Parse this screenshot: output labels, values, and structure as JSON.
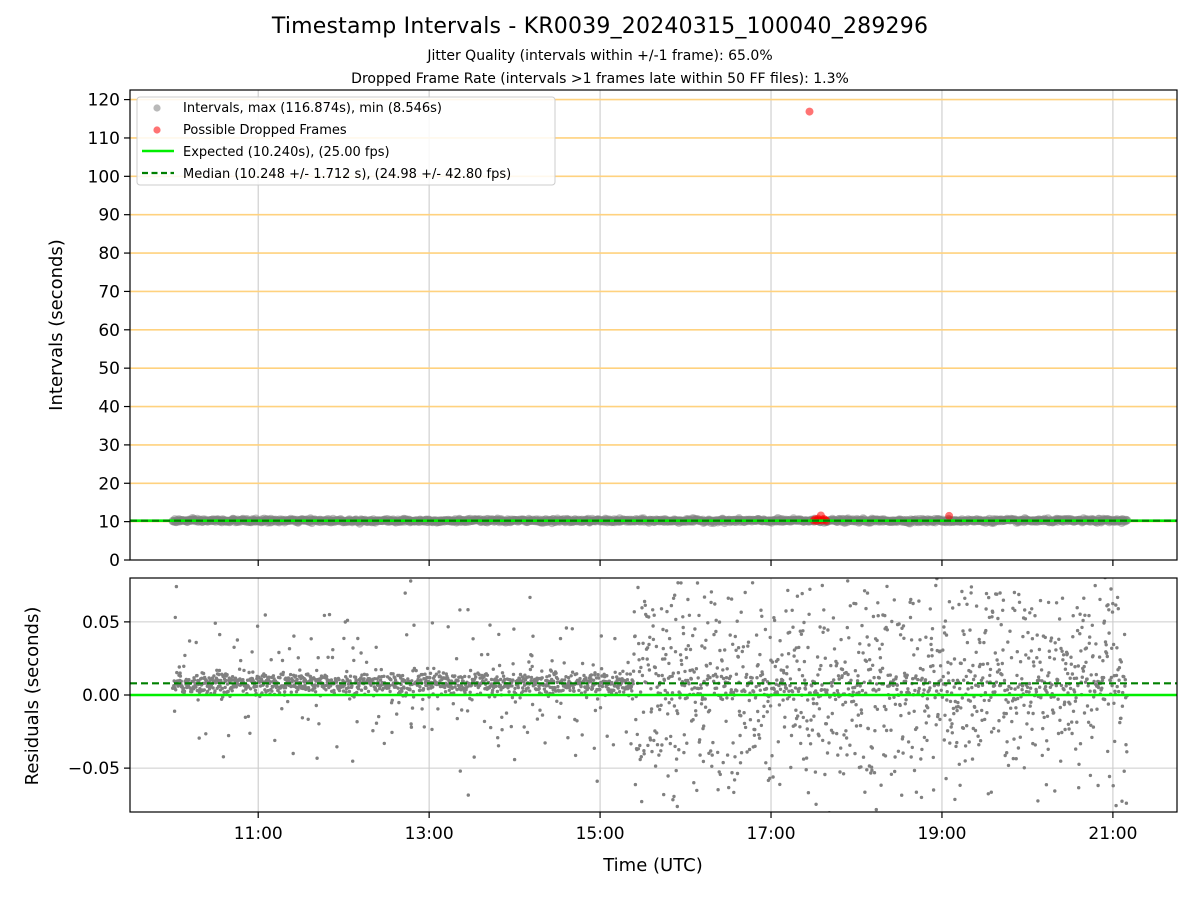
{
  "chart_data": [
    {
      "type": "scatter",
      "title": "Timestamp Intervals - KR0039_20240315_100040_289296",
      "subtitle_1": "Jitter Quality (intervals within +/-1 frame): 65.0%",
      "subtitle_2": "Dropped Frame Rate (intervals >1 frames late within 50 FF files): 1.3%",
      "ylabel": "Intervals (seconds)",
      "ylim": [
        0,
        122.5
      ],
      "xlim": [
        "09:30",
        "21:45"
      ],
      "y_ticks": [
        "0",
        "10",
        "20",
        "30",
        "40",
        "50",
        "60",
        "70",
        "80",
        "90",
        "100",
        "110",
        "120"
      ],
      "horizontal_reference_lines": [
        10,
        20,
        30,
        40,
        50,
        60,
        70,
        80,
        90,
        100,
        110,
        120
      ],
      "reference_line_color": "#ffd27f",
      "x_grid": true,
      "legend_position": "upper-left",
      "legend": {
        "intervals": "Intervals, max (116.874s), min (8.546s)",
        "dropped": "Possible Dropped Frames",
        "expected": "Expected (10.240s), (25.00 fps)",
        "median": "Median (10.248 +/- 1.712 s), (24.98 +/- 42.80 fps)"
      },
      "expected_value": 10.24,
      "median_value": 10.248,
      "expected_color": "#00ee00",
      "median_color": "#008000",
      "intervals_color": "#808080",
      "dropped_color": "#ff0000",
      "intervals_time_range": [
        "10:00",
        "21:10"
      ],
      "intervals_typical": 10.24,
      "dropped_points": [
        {
          "x": "17:27",
          "y": 116.874
        },
        {
          "x": "17:30",
          "y": 10.3
        },
        {
          "x": "17:31",
          "y": 10.6
        },
        {
          "x": "17:32",
          "y": 10.2
        },
        {
          "x": "17:33",
          "y": 10.8
        },
        {
          "x": "17:34",
          "y": 10.4
        },
        {
          "x": "17:35",
          "y": 11.6
        },
        {
          "x": "17:36",
          "y": 10.3
        },
        {
          "x": "17:37",
          "y": 10.7
        },
        {
          "x": "17:38",
          "y": 10.5
        },
        {
          "x": "17:39",
          "y": 10.2
        },
        {
          "x": "19:05",
          "y": 11.5
        }
      ]
    },
    {
      "type": "scatter",
      "ylabel": "Residuals (seconds)",
      "xlabel": "Time (UTC)",
      "ylim": [
        -0.08,
        0.08
      ],
      "y_ticks": [
        "−0.05",
        "0.00",
        "0.05"
      ],
      "y_tick_values": [
        -0.05,
        0.0,
        0.05
      ],
      "x_ticks": [
        "11:00",
        "13:00",
        "15:00",
        "17:00",
        "19:00",
        "21:00"
      ],
      "xlim": [
        "09:30",
        "21:45"
      ],
      "grid": true,
      "expected_residual": 0.0,
      "median_residual": 0.008,
      "points_color": "#808080",
      "time_range": [
        "10:00",
        "21:10"
      ]
    }
  ]
}
